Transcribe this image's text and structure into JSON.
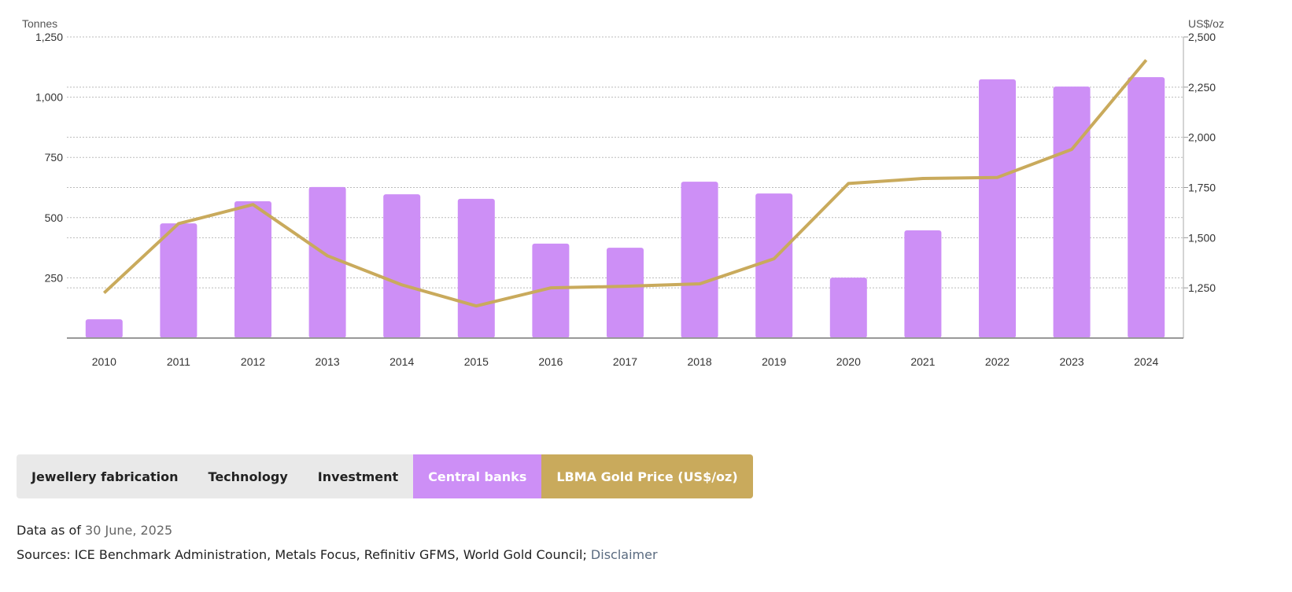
{
  "chart_data": {
    "type": "bar+line",
    "categories": [
      "2010",
      "2011",
      "2012",
      "2013",
      "2014",
      "2015",
      "2016",
      "2017",
      "2018",
      "2019",
      "2020",
      "2021",
      "2022",
      "2023",
      "2024"
    ],
    "series": [
      {
        "name": "Central banks",
        "type": "bar",
        "axis": "left",
        "color": "#cd8ff6",
        "values": [
          78,
          476,
          568,
          627,
          597,
          578,
          392,
          375,
          649,
          600,
          251,
          447,
          1074,
          1044,
          1083
        ]
      },
      {
        "name": "LBMA Gold Price (US$/oz)",
        "type": "line",
        "axis": "right",
        "color": "#c9aa5c",
        "values": [
          1225,
          1570,
          1665,
          1410,
          1265,
          1160,
          1250,
          1258,
          1270,
          1395,
          1770,
          1795,
          1800,
          1940,
          2385
        ]
      }
    ],
    "ylabel": "Tonnes",
    "ylim": [
      0,
      1250
    ],
    "yticks": [
      "250",
      "500",
      "750",
      "1,000",
      "1,250"
    ],
    "y2label": "US$/oz",
    "y2lim": [
      1000,
      2500
    ],
    "y2ticks": [
      "1,250",
      "1,500",
      "1,750",
      "2,000",
      "2,250",
      "2,500"
    ],
    "grid": true
  },
  "legend": [
    "Jewellery fabrication",
    "Technology",
    "Investment",
    "Central banks",
    "LBMA Gold Price (US$/oz)"
  ],
  "footer": {
    "data_as_of_label": "Data as of",
    "data_as_of_date": "30 June, 2025",
    "sources": "Sources: ICE Benchmark Administration, Metals Focus, Refinitiv GFMS, World Gold Council;",
    "disclaimer": "Disclaimer"
  }
}
